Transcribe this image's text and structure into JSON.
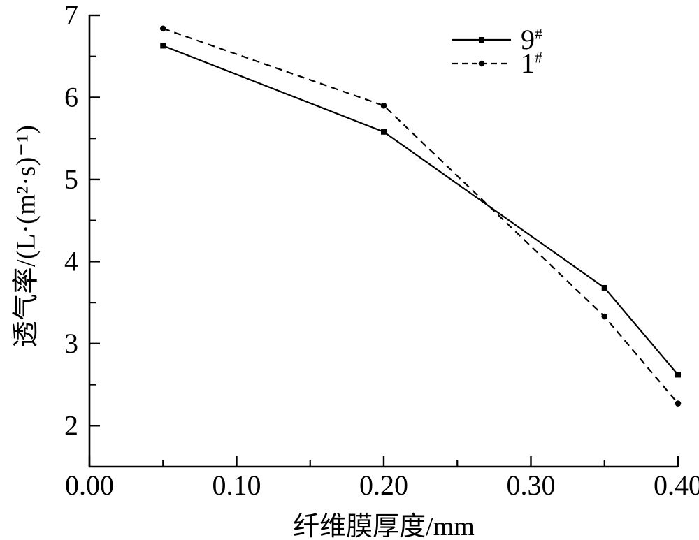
{
  "figure": {
    "background": "#ffffff",
    "ink_color": "#000000"
  },
  "chart_data": {
    "type": "line",
    "title": "",
    "xlabel": "纤维膜厚度/mm",
    "ylabel": "透气率/(L·(m²·s)⁻¹)",
    "x": [
      0.05,
      0.2,
      0.35,
      0.4
    ],
    "series": [
      {
        "name": "9",
        "name_suffix": "#",
        "values": [
          6.63,
          5.58,
          3.68,
          2.62
        ],
        "line": "solid",
        "marker": "square",
        "color": "#000000"
      },
      {
        "name": "1",
        "name_suffix": "#",
        "values": [
          6.84,
          5.9,
          3.33,
          2.27
        ],
        "line": "dashed",
        "marker": "circle",
        "color": "#000000"
      }
    ],
    "xlim": [
      0.0,
      0.4
    ],
    "ylim": [
      1.5,
      7.0
    ],
    "x_major_ticks": [
      0.0,
      0.1,
      0.2,
      0.3,
      0.4
    ],
    "x_tick_labels": [
      "0.00",
      "0.10",
      "0.20",
      "0.30",
      "0.40"
    ],
    "x_minor_step": 0.05,
    "y_major_ticks": [
      2,
      3,
      4,
      5,
      6,
      7
    ],
    "y_tick_labels": [
      "2",
      "3",
      "4",
      "5",
      "6",
      "7"
    ],
    "y_minor_step": 0.5,
    "grid": false,
    "legend_position": "top-right-inside"
  }
}
